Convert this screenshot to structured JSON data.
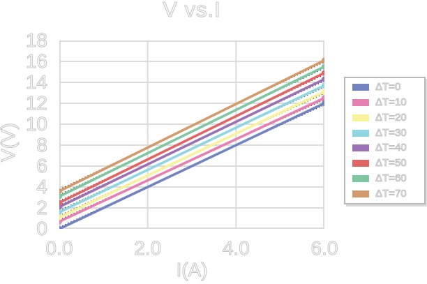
{
  "chart": {
    "title": "V vs.I",
    "xlabel": "I(A)",
    "ylabel": "V(V)"
  },
  "style": {
    "grid_color": "#dcdcdc",
    "text_outline_color": "#c5c5c5",
    "legend_border_color": "#b9b9b9",
    "legend_shadow_color": "#dcdcdc",
    "trendline_color": "#000000",
    "background": "#ffffff"
  },
  "chart_data": {
    "type": "line",
    "title": "V vs.I",
    "xlabel": "I(A)",
    "ylabel": "V(V)",
    "xlim": [
      0,
      6
    ],
    "ylim": [
      0,
      18
    ],
    "x_tick_labels": [
      "0.0",
      "2.0",
      "4.0",
      "6.0"
    ],
    "x_tick_values": [
      0,
      2,
      4,
      6
    ],
    "y_tick_labels": [
      "0",
      "2",
      "4",
      "6",
      "8",
      "10",
      "12",
      "14",
      "16",
      "18"
    ],
    "y_tick_values": [
      0,
      2,
      4,
      6,
      8,
      10,
      12,
      14,
      16,
      18
    ],
    "grid": true,
    "legend_position": "right",
    "x": [
      0,
      6
    ],
    "series": [
      {
        "name": "ΔT=0",
        "color": "#7183c3",
        "values": [
          0.0,
          12.0
        ]
      },
      {
        "name": "ΔT=10",
        "color": "#e77fb1",
        "values": [
          0.7,
          12.5
        ]
      },
      {
        "name": "ΔT=20",
        "color": "#f8f29b",
        "values": [
          1.1,
          13.1
        ]
      },
      {
        "name": "ΔT=30",
        "color": "#90d5e2",
        "values": [
          1.6,
          13.7
        ]
      },
      {
        "name": "ΔT=40",
        "color": "#9c70b4",
        "values": [
          2.1,
          14.3
        ]
      },
      {
        "name": "ΔT=50",
        "color": "#e26565",
        "values": [
          2.5,
          14.9
        ]
      },
      {
        "name": "ΔT=60",
        "color": "#7fc7a3",
        "values": [
          3.1,
          15.5
        ]
      },
      {
        "name": "ΔT=70",
        "color": "#d39a6a",
        "values": [
          3.6,
          16.1
        ]
      }
    ],
    "trendline": {
      "style": "dotted",
      "color": "#000000",
      "per_series": true
    }
  }
}
